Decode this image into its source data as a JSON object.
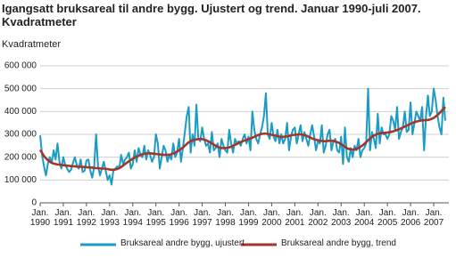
{
  "chart_data": {
    "type": "line",
    "title": "Igangsatt bruksareal til andre bygg. Ujustert og trend. Januar 1990-juli 2007. Kvadratmeter",
    "y_label": "Kvadratmeter",
    "categories": [
      "Jan. 1990",
      null,
      null,
      null,
      null,
      null,
      null,
      null,
      null,
      null,
      null,
      null,
      "Jan. 1991",
      null,
      null,
      null,
      null,
      null,
      null,
      null,
      null,
      null,
      null,
      null,
      "Jan. 1992",
      null,
      null,
      null,
      null,
      null,
      null,
      null,
      null,
      null,
      null,
      null,
      "Jan. 1993",
      null,
      null,
      null,
      null,
      null,
      null,
      null,
      null,
      null,
      null,
      null,
      "Jan. 1994",
      null,
      null,
      null,
      null,
      null,
      null,
      null,
      null,
      null,
      null,
      null,
      "Jan. 1995",
      null,
      null,
      null,
      null,
      null,
      null,
      null,
      null,
      null,
      null,
      null,
      "Jan. 1996",
      null,
      null,
      null,
      null,
      null,
      null,
      null,
      null,
      null,
      null,
      null,
      "Jan. 1997",
      null,
      null,
      null,
      null,
      null,
      null,
      null,
      null,
      null,
      null,
      null,
      "Jan. 1998",
      null,
      null,
      null,
      null,
      null,
      null,
      null,
      null,
      null,
      null,
      null,
      "Jan. 1999",
      null,
      null,
      null,
      null,
      null,
      null,
      null,
      null,
      null,
      null,
      null,
      "Jan. 2000",
      null,
      null,
      null,
      null,
      null,
      null,
      null,
      null,
      null,
      null,
      null,
      "Jan. 2001",
      null,
      null,
      null,
      null,
      null,
      null,
      null,
      null,
      null,
      null,
      null,
      "Jan. 2002",
      null,
      null,
      null,
      null,
      null,
      null,
      null,
      null,
      null,
      null,
      null,
      "Jan. 2003",
      null,
      null,
      null,
      null,
      null,
      null,
      null,
      null,
      null,
      null,
      null,
      "Jan. 2004",
      null,
      null,
      null,
      null,
      null,
      null,
      null,
      null,
      null,
      null,
      null,
      "Jan. 2005",
      null,
      null,
      null,
      null,
      null,
      null,
      null,
      null,
      null,
      null,
      null,
      "Jan. 2006",
      null,
      null,
      null,
      null,
      null,
      null,
      null,
      null,
      null,
      null,
      null,
      "Jan. 2007",
      null,
      null,
      null,
      null,
      null,
      null
    ],
    "series": [
      {
        "name": "Bruksareal andre bygg, ujustert",
        "color": "#1b9cc2",
        "values": [
          295000,
          210000,
          160000,
          120000,
          170000,
          200000,
          175000,
          230000,
          190000,
          260000,
          180000,
          150000,
          200000,
          165000,
          150000,
          135000,
          145000,
          175000,
          200000,
          165000,
          150000,
          190000,
          135000,
          140000,
          185000,
          190000,
          140000,
          110000,
          160000,
          300000,
          160000,
          120000,
          150000,
          180000,
          140000,
          100000,
          120000,
          80000,
          145000,
          150000,
          160000,
          150000,
          210000,
          170000,
          190000,
          200000,
          220000,
          150000,
          170000,
          230000,
          180000,
          240000,
          210000,
          200000,
          250000,
          190000,
          230000,
          210000,
          180000,
          200000,
          300000,
          260000,
          150000,
          200000,
          250000,
          230000,
          180000,
          210000,
          190000,
          260000,
          200000,
          220000,
          280000,
          180000,
          240000,
          310000,
          380000,
          420000,
          220000,
          300000,
          250000,
          430000,
          280000,
          270000,
          330000,
          280000,
          250000,
          260000,
          220000,
          310000,
          230000,
          240000,
          260000,
          200000,
          280000,
          250000,
          230000,
          220000,
          320000,
          260000,
          220000,
          280000,
          260000,
          270000,
          250000,
          280000,
          300000,
          260000,
          290000,
          230000,
          400000,
          320000,
          280000,
          260000,
          300000,
          330000,
          380000,
          480000,
          300000,
          280000,
          350000,
          290000,
          270000,
          320000,
          260000,
          300000,
          260000,
          280000,
          350000,
          230000,
          290000,
          320000,
          330000,
          260000,
          300000,
          340000,
          270000,
          310000,
          280000,
          250000,
          300000,
          340000,
          290000,
          230000,
          270000,
          260000,
          340000,
          220000,
          250000,
          300000,
          320000,
          230000,
          270000,
          280000,
          230000,
          220000,
          290000,
          170000,
          330000,
          200000,
          180000,
          240000,
          200000,
          250000,
          230000,
          280000,
          200000,
          230000,
          240000,
          260000,
          500000,
          230000,
          310000,
          280000,
          240000,
          390000,
          260000,
          330000,
          300000,
          300000,
          280000,
          300000,
          380000,
          360000,
          320000,
          420000,
          280000,
          310000,
          330000,
          400000,
          310000,
          320000,
          440000,
          300000,
          350000,
          400000,
          380000,
          360000,
          420000,
          230000,
          380000,
          470000,
          380000,
          400000,
          500000,
          450000,
          380000,
          330000,
          300000,
          460000,
          360000
        ]
      },
      {
        "name": "Bruksareal andre bygg, trend",
        "color": "#a3362c",
        "values": [
          232000,
          218000,
          205000,
          195000,
          187000,
          180000,
          175000,
          172000,
          170000,
          168000,
          167000,
          166000,
          165000,
          164000,
          163000,
          162000,
          161000,
          160000,
          160000,
          159000,
          158000,
          158000,
          157000,
          157000,
          156000,
          155000,
          155000,
          154000,
          153000,
          152000,
          152000,
          151000,
          150000,
          150000,
          149000,
          148000,
          146000,
          145000,
          145000,
          146000,
          148000,
          152000,
          157000,
          163000,
          170000,
          176000,
          182000,
          188000,
          193000,
          198000,
          202000,
          206000,
          210000,
          213000,
          215000,
          216000,
          217000,
          217000,
          216000,
          215000,
          214000,
          213000,
          212000,
          211000,
          210000,
          210000,
          210000,
          211000,
          213000,
          216000,
          220000,
          225000,
          230000,
          236000,
          242000,
          250000,
          258000,
          265000,
          270000,
          274000,
          276000,
          278000,
          279000,
          280000,
          279000,
          277000,
          274000,
          270000,
          265000,
          260000,
          255000,
          250000,
          245000,
          242000,
          240000,
          240000,
          240000,
          241000,
          243000,
          246000,
          250000,
          254000,
          258000,
          262000,
          266000,
          270000,
          273000,
          276000,
          279000,
          282000,
          285000,
          289000,
          293000,
          297000,
          300000,
          302000,
          303000,
          303000,
          302000,
          300000,
          298000,
          296000,
          294000,
          292000,
          290000,
          289000,
          289000,
          290000,
          291000,
          293000,
          295000,
          297000,
          298000,
          299000,
          300000,
          300000,
          299000,
          297000,
          294000,
          290000,
          286000,
          282000,
          279000,
          276000,
          274000,
          272000,
          271000,
          270000,
          270000,
          271000,
          272000,
          272000,
          271000,
          269000,
          266000,
          262000,
          257000,
          251000,
          245000,
          240000,
          236000,
          234000,
          233000,
          234000,
          236000,
          240000,
          245000,
          251000,
          258000,
          266000,
          274000,
          282000,
          289000,
          295000,
          299000,
          302000,
          304000,
          305000,
          306000,
          307000,
          308000,
          309000,
          311000,
          313000,
          316000,
          319000,
          322000,
          326000,
          330000,
          334000,
          338000,
          342000,
          346000,
          350000,
          353000,
          356000,
          358000,
          360000,
          361000,
          362000,
          362000,
          363000,
          365000,
          368000,
          372000,
          378000,
          385000,
          393000,
          402000,
          412000,
          420000
        ]
      }
    ],
    "ylim": [
      0,
      600000
    ],
    "yticks": [
      0,
      {
        "value": 100000,
        "label": "100 000"
      },
      {
        "value": 200000,
        "label": "200 000"
      },
      {
        "value": 300000,
        "label": "300 000"
      },
      {
        "value": 400000,
        "label": "400 000"
      },
      {
        "value": 500000,
        "label": "500 000"
      },
      {
        "value": 600000,
        "label": "600 000"
      }
    ],
    "grid": true
  }
}
